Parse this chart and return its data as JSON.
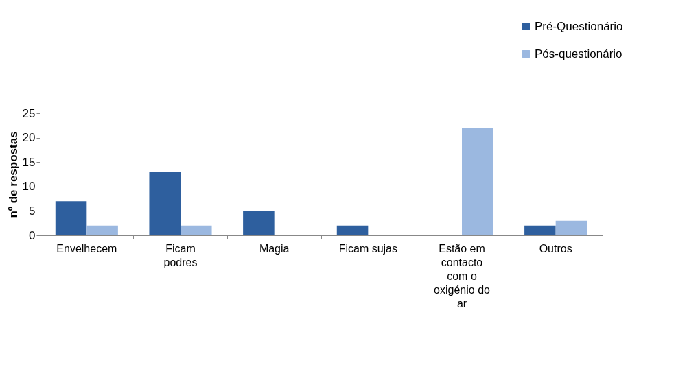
{
  "chart_data": {
    "type": "bar",
    "ylabel": "nº de respostas",
    "categories": [
      "Envelhecem",
      "Ficam podres",
      "Magia",
      "Ficam sujas",
      "Estão em contacto com o oxigénio do ar",
      "Outros"
    ],
    "series": [
      {
        "name": "Pré-Questionário",
        "color": "#2e5f9e",
        "values": [
          7,
          13,
          5,
          2,
          0,
          2
        ]
      },
      {
        "name": "Pós-questionário",
        "color": "#9bb8e0",
        "values": [
          2,
          2,
          0,
          0,
          22,
          3
        ]
      }
    ],
    "ylim": [
      0,
      25
    ],
    "yticks": [
      0,
      5,
      10,
      15,
      20,
      25
    ],
    "grid": false,
    "legend": "top right"
  }
}
